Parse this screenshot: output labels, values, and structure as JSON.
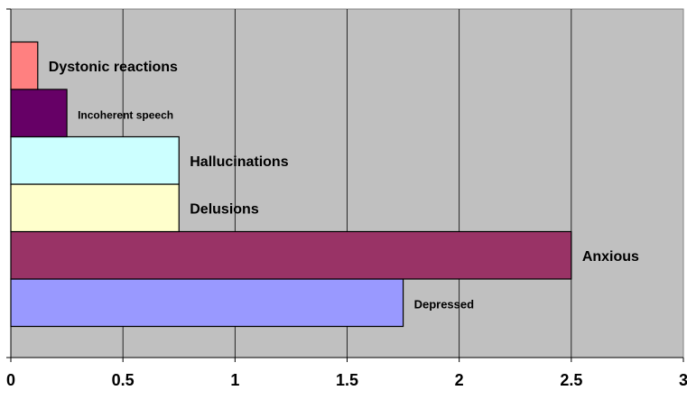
{
  "chart_data": {
    "type": "bar",
    "orientation": "horizontal",
    "categories": [
      "Depressed",
      "Anxious",
      "Delusions",
      "Hallucinations",
      "Incoherent speech",
      "Dystonic reactions"
    ],
    "values": [
      1.75,
      2.5,
      0.75,
      0.75,
      0.25,
      0.12
    ],
    "bar_colors": [
      "#9999ff",
      "#993366",
      "#ffffcc",
      "#ccffff",
      "#660066",
      "#ff8080"
    ],
    "data_labels": [
      "Depressed",
      "Anxious",
      "Delusions",
      "Hallucinations",
      "Incoherent speech",
      "Dystonic reactions"
    ],
    "xlim": [
      0,
      3
    ],
    "x_ticks": [
      "0",
      "0.5",
      "1",
      "1.5",
      "2",
      "2.5",
      "3"
    ],
    "title": "",
    "xlabel": "",
    "ylabel": "",
    "grid": "vertical",
    "plot_background": "#c0c0c0",
    "legend": "none"
  }
}
